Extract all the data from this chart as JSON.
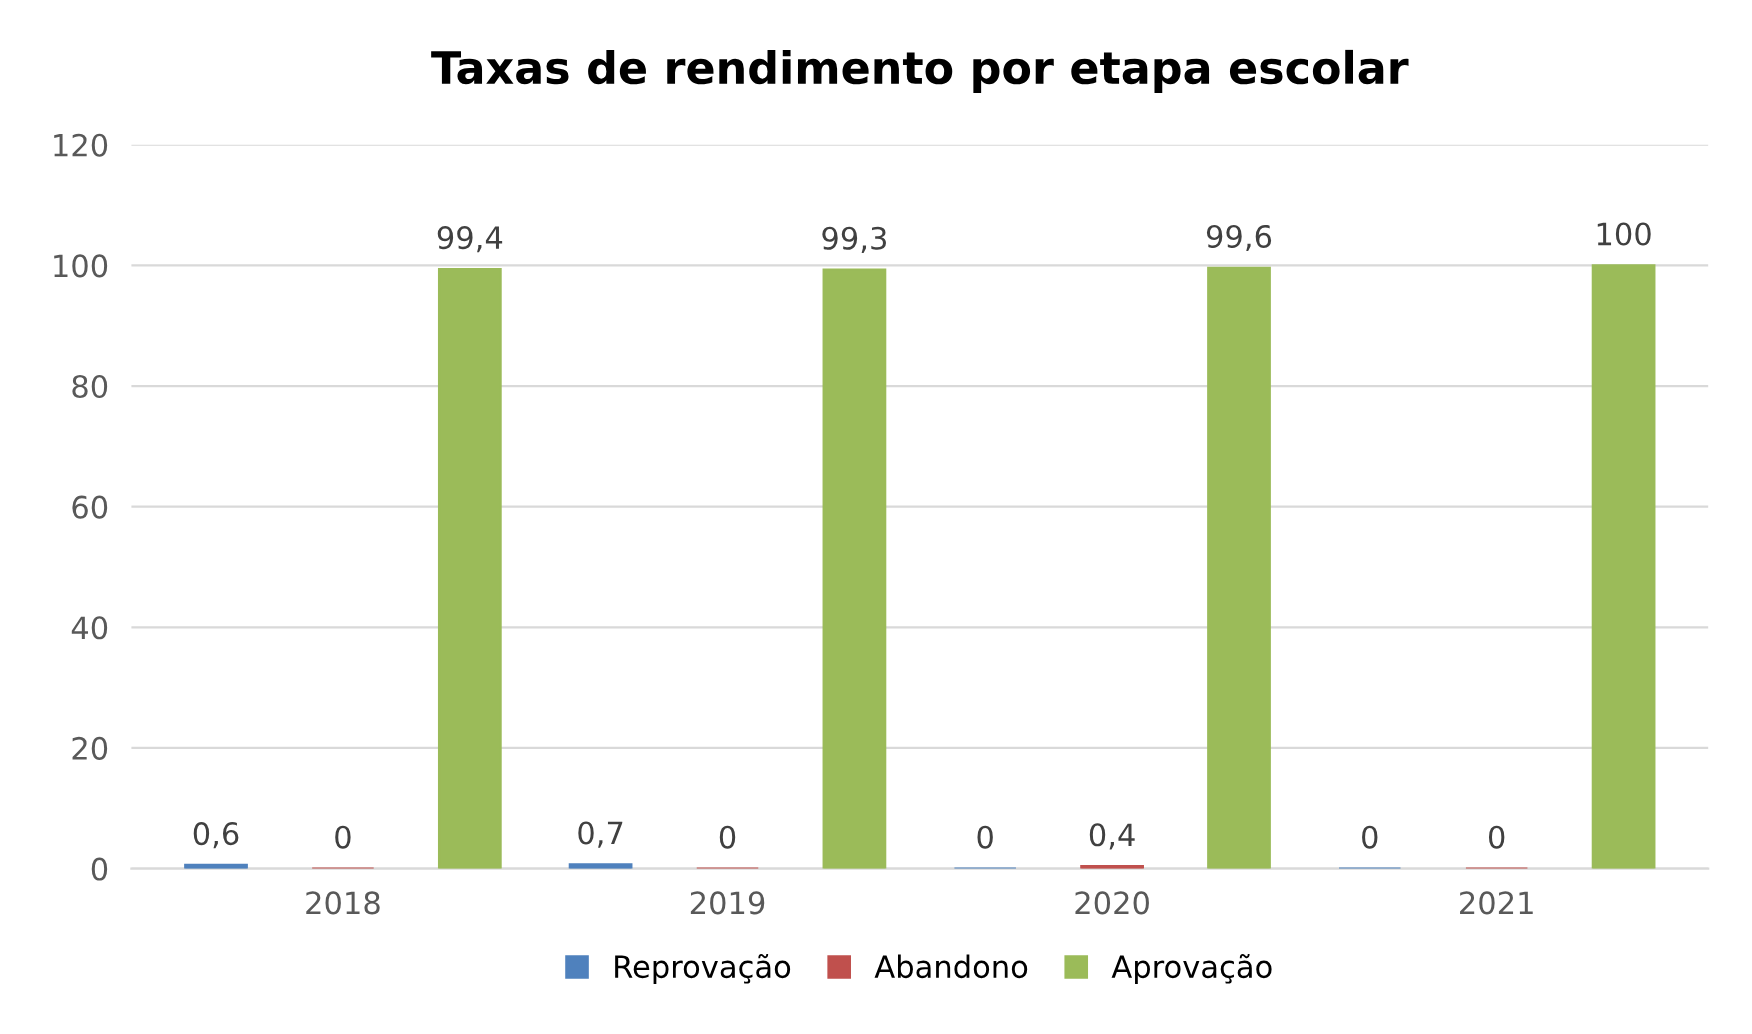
{
  "chart_data": {
    "type": "bar",
    "title": "Taxas de rendimento por etapa escolar",
    "categories": [
      "2018",
      "2019",
      "2020",
      "2021"
    ],
    "series": [
      {
        "name": "Reprovação",
        "color": "#4f81bd",
        "values": [
          0.6,
          0.7,
          0,
          0
        ],
        "value_labels": [
          "0,6",
          "0,7",
          "0",
          "0"
        ]
      },
      {
        "name": "Abandono",
        "color": "#c0504d",
        "values": [
          0,
          0,
          0.4,
          0
        ],
        "value_labels": [
          "0",
          "0",
          "0,4",
          "0"
        ]
      },
      {
        "name": "Aprovação",
        "color": "#9bbb59",
        "values": [
          99.4,
          99.3,
          99.6,
          100
        ],
        "value_labels": [
          "99,4",
          "99,3",
          "99,6",
          "100"
        ]
      }
    ],
    "ylim": [
      0,
      120
    ],
    "yticks": [
      0,
      20,
      40,
      60,
      80,
      100,
      120
    ],
    "grid": "y",
    "legend": "bottom"
  }
}
